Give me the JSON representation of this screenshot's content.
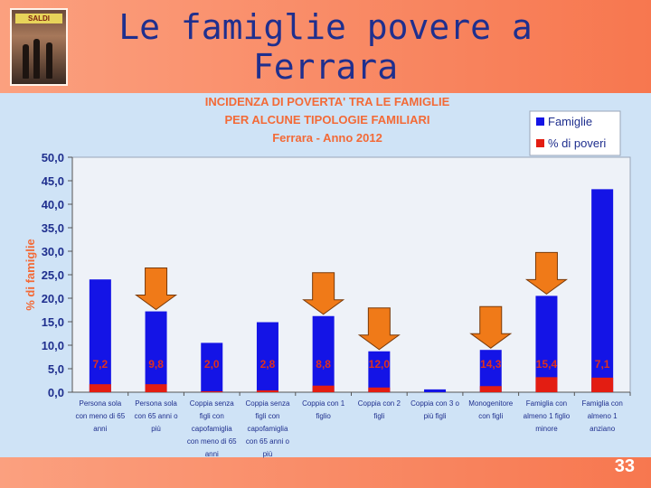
{
  "slide": {
    "title_line1": "Le famiglie povere a",
    "title_line2": "Ferrara",
    "page_number": "33",
    "photo_sign": "SALDI"
  },
  "colors": {
    "famiglie": "#1414e6",
    "poveri": "#e31d12",
    "arrow": "#f07a18",
    "axis_text": "#1f2f8e",
    "title_text": "#f36a37"
  },
  "chart_data": {
    "type": "bar",
    "title_lines": [
      "INCIDENZA DI POVERTA' TRA LE FAMIGLIE",
      "PER ALCUNE TIPOLOGIE FAMILIARI",
      "Ferrara - Anno 2012"
    ],
    "ylabel": "% di famiglie",
    "ylim": [
      0,
      50
    ],
    "yticks": [
      "0,0",
      "5,0",
      "10,0",
      "15,0",
      "20,0",
      "25,0",
      "30,0",
      "35,0",
      "40,0",
      "45,0",
      "50,0"
    ],
    "categories": [
      [
        "Persona sola",
        "con meno di 65",
        "anni"
      ],
      [
        "Persona sola",
        "con 65 anni o",
        "più"
      ],
      [
        "Coppia senza",
        "figli con",
        "capofamiglia",
        "con meno di 65",
        "anni"
      ],
      [
        "Coppia senza",
        "figli con",
        "capofamiglia",
        "con 65 anni o",
        "più"
      ],
      [
        "Coppia con 1",
        "figlio"
      ],
      [
        "Coppia con 2",
        "figli"
      ],
      [
        "Coppia con 3 o",
        "più figli"
      ],
      [
        "Monogenitore",
        "con figli"
      ],
      [
        "Famiglia con",
        "almeno 1 figlio",
        "minore"
      ],
      [
        "Famiglia con",
        "almeno 1",
        "anziano"
      ]
    ],
    "series": [
      {
        "name": "Famiglie",
        "values": [
          24.0,
          17.2,
          10.5,
          14.9,
          16.2,
          8.7,
          0.6,
          9.0,
          20.5,
          43.2
        ]
      },
      {
        "name": "% di poveri",
        "values": [
          1.7,
          1.7,
          0.2,
          0.4,
          1.4,
          1.0,
          0.0,
          1.3,
          3.2,
          3.1
        ]
      }
    ],
    "data_labels": [
      "7,2",
      "9,8",
      "2,0",
      "2,8",
      "8,8",
      "12,0",
      "",
      "14,3",
      "15,4",
      "7,1"
    ],
    "highlighted": [
      1,
      4,
      5,
      7,
      8
    ],
    "legend_position": "top-right"
  }
}
